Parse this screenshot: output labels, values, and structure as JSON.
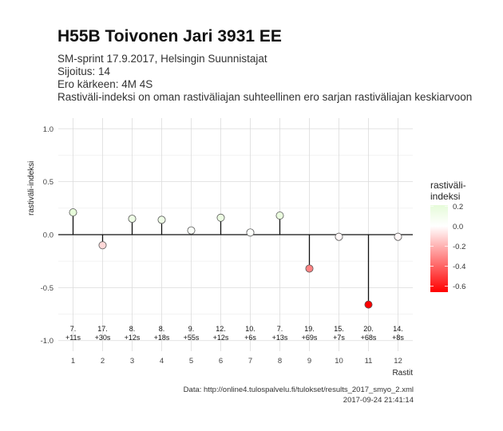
{
  "header": {
    "title": "H55B Toivonen Jari 3931 EE",
    "subtitle_lines": [
      "SM-sprint 17.9.2017, Helsingin Suunnistajat",
      "Sijoitus: 14",
      "Ero kärkeen: 4M 4S",
      "Rastiväli-indeksi on oman rastiväliajan suhteellinen ero sarjan rastiväliajan keskiarvoon"
    ]
  },
  "footer": {
    "source": "Data: http://online4.tulospalvelu.fi/tulokset/results_2017_smyo_2.xml",
    "timestamp": "2017-09-24 21:41:14"
  },
  "chart_data": {
    "type": "lollipop",
    "ylabel": "rastiväli-indeksi",
    "xlabel": "Rastit",
    "ylim": [
      -1.1,
      1.1
    ],
    "yticks": [
      1.0,
      0.5,
      0.0,
      -0.5,
      -1.0
    ],
    "ytick_labels": [
      "1.0",
      "0.5",
      "0.0",
      "-0.5",
      "-1.0"
    ],
    "x": [
      1,
      2,
      3,
      4,
      5,
      6,
      7,
      8,
      9,
      10,
      11,
      12
    ],
    "values": [
      0.21,
      -0.1,
      0.15,
      0.14,
      0.04,
      0.16,
      0.02,
      0.18,
      -0.32,
      -0.02,
      -0.66,
      -0.02
    ],
    "rank_labels": [
      "7.",
      "17.",
      "8.",
      "8.",
      "9.",
      "12.",
      "10.",
      "7.",
      "19.",
      "15.",
      "20.",
      "14."
    ],
    "diff_labels": [
      "+11s",
      "+30s",
      "+12s",
      "+18s",
      "+55s",
      "+12s",
      "+6s",
      "+13s",
      "+69s",
      "+7s",
      "+68s",
      "+8s"
    ],
    "grid": true,
    "legend": {
      "title_lines": [
        "rastiväli-",
        "indeksi"
      ],
      "placement": "right",
      "range": [
        -0.66,
        0.21
      ],
      "ticks": [
        0.2,
        0.0,
        -0.2,
        -0.4,
        -0.6
      ],
      "tick_labels": [
        "0.2",
        "0.0",
        "-0.2",
        "-0.4",
        "-0.6"
      ],
      "colors": {
        "high": "#e6fbd9",
        "mid": "#ffffff",
        "low": "#ff0000"
      }
    }
  }
}
